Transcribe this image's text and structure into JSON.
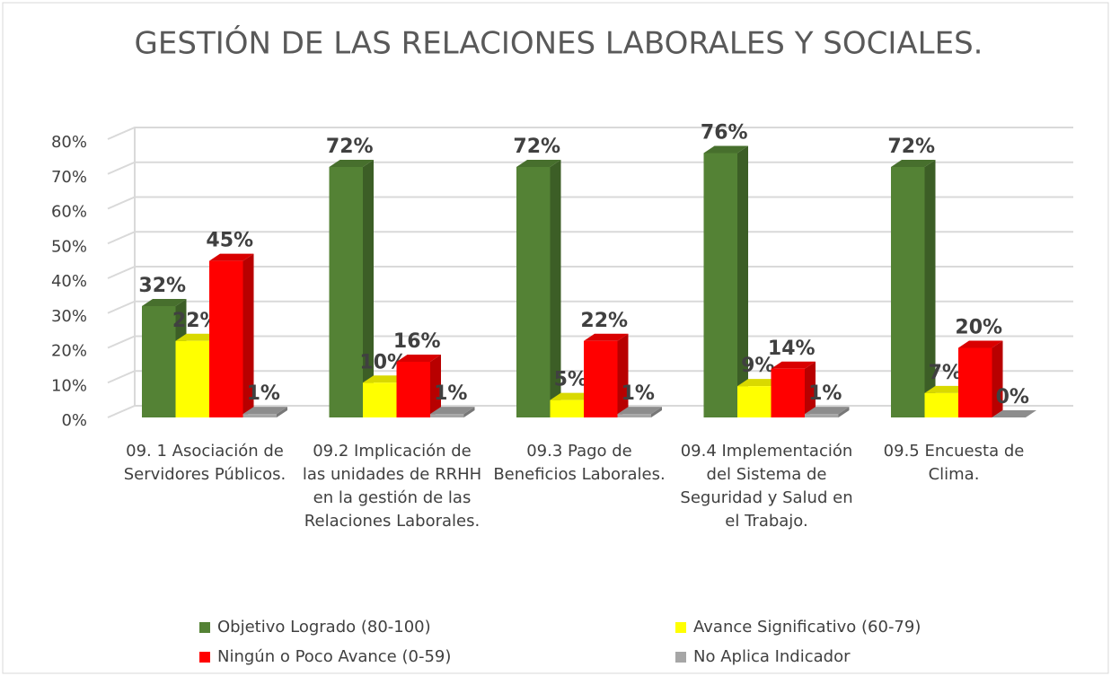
{
  "chart_data": {
    "type": "bar3d",
    "title": "GESTIÓN DE LAS RELACIONES LABORALES Y SOCIALES.",
    "categories": [
      "09. 1 Asociación de Servidores Públicos.",
      "09.2 Implicación de las unidades de RRHH en la gestión de las Relaciones Laborales.",
      "09.3 Pago de Beneficios Laborales.",
      "09.4 Implementación del Sistema de Seguridad y Salud en el Trabajo.",
      "09.5 Encuesta de Clima."
    ],
    "series": [
      {
        "name": "Objetivo Logrado (80-100)",
        "color": "#548235",
        "values": [
          32,
          72,
          72,
          76,
          72
        ],
        "value_labels": [
          "32%",
          "72%",
          "72%",
          "76%",
          "72%"
        ]
      },
      {
        "name": "Avance Significativo (60-79)",
        "color": "#ffff00",
        "values": [
          22,
          10,
          5,
          9,
          7
        ],
        "value_labels": [
          "22%",
          "10%",
          "5%",
          "9%",
          "7%"
        ]
      },
      {
        "name": "Ningún o Poco Avance (0-59)",
        "color": "#ff0000",
        "values": [
          45,
          16,
          22,
          14,
          20
        ],
        "value_labels": [
          "45%",
          "16%",
          "22%",
          "14%",
          "20%"
        ]
      },
      {
        "name": "No Aplica Indicador",
        "color": "#a6a6a6",
        "values": [
          1,
          1,
          1,
          1,
          0
        ],
        "value_labels": [
          "1%",
          "1%",
          "1%",
          "1%",
          "0%"
        ]
      }
    ],
    "ylim": [
      0,
      80
    ],
    "yticks": [
      {
        "value": 0,
        "label": "0%"
      },
      {
        "value": 10,
        "label": "10%"
      },
      {
        "value": 20,
        "label": "20%"
      },
      {
        "value": 30,
        "label": "30%"
      },
      {
        "value": 40,
        "label": "40%"
      },
      {
        "value": 50,
        "label": "50%"
      },
      {
        "value": 60,
        "label": "60%"
      },
      {
        "value": 70,
        "label": "70%"
      },
      {
        "value": 80,
        "label": "80%"
      }
    ],
    "grid": true,
    "legend": "bottom"
  }
}
